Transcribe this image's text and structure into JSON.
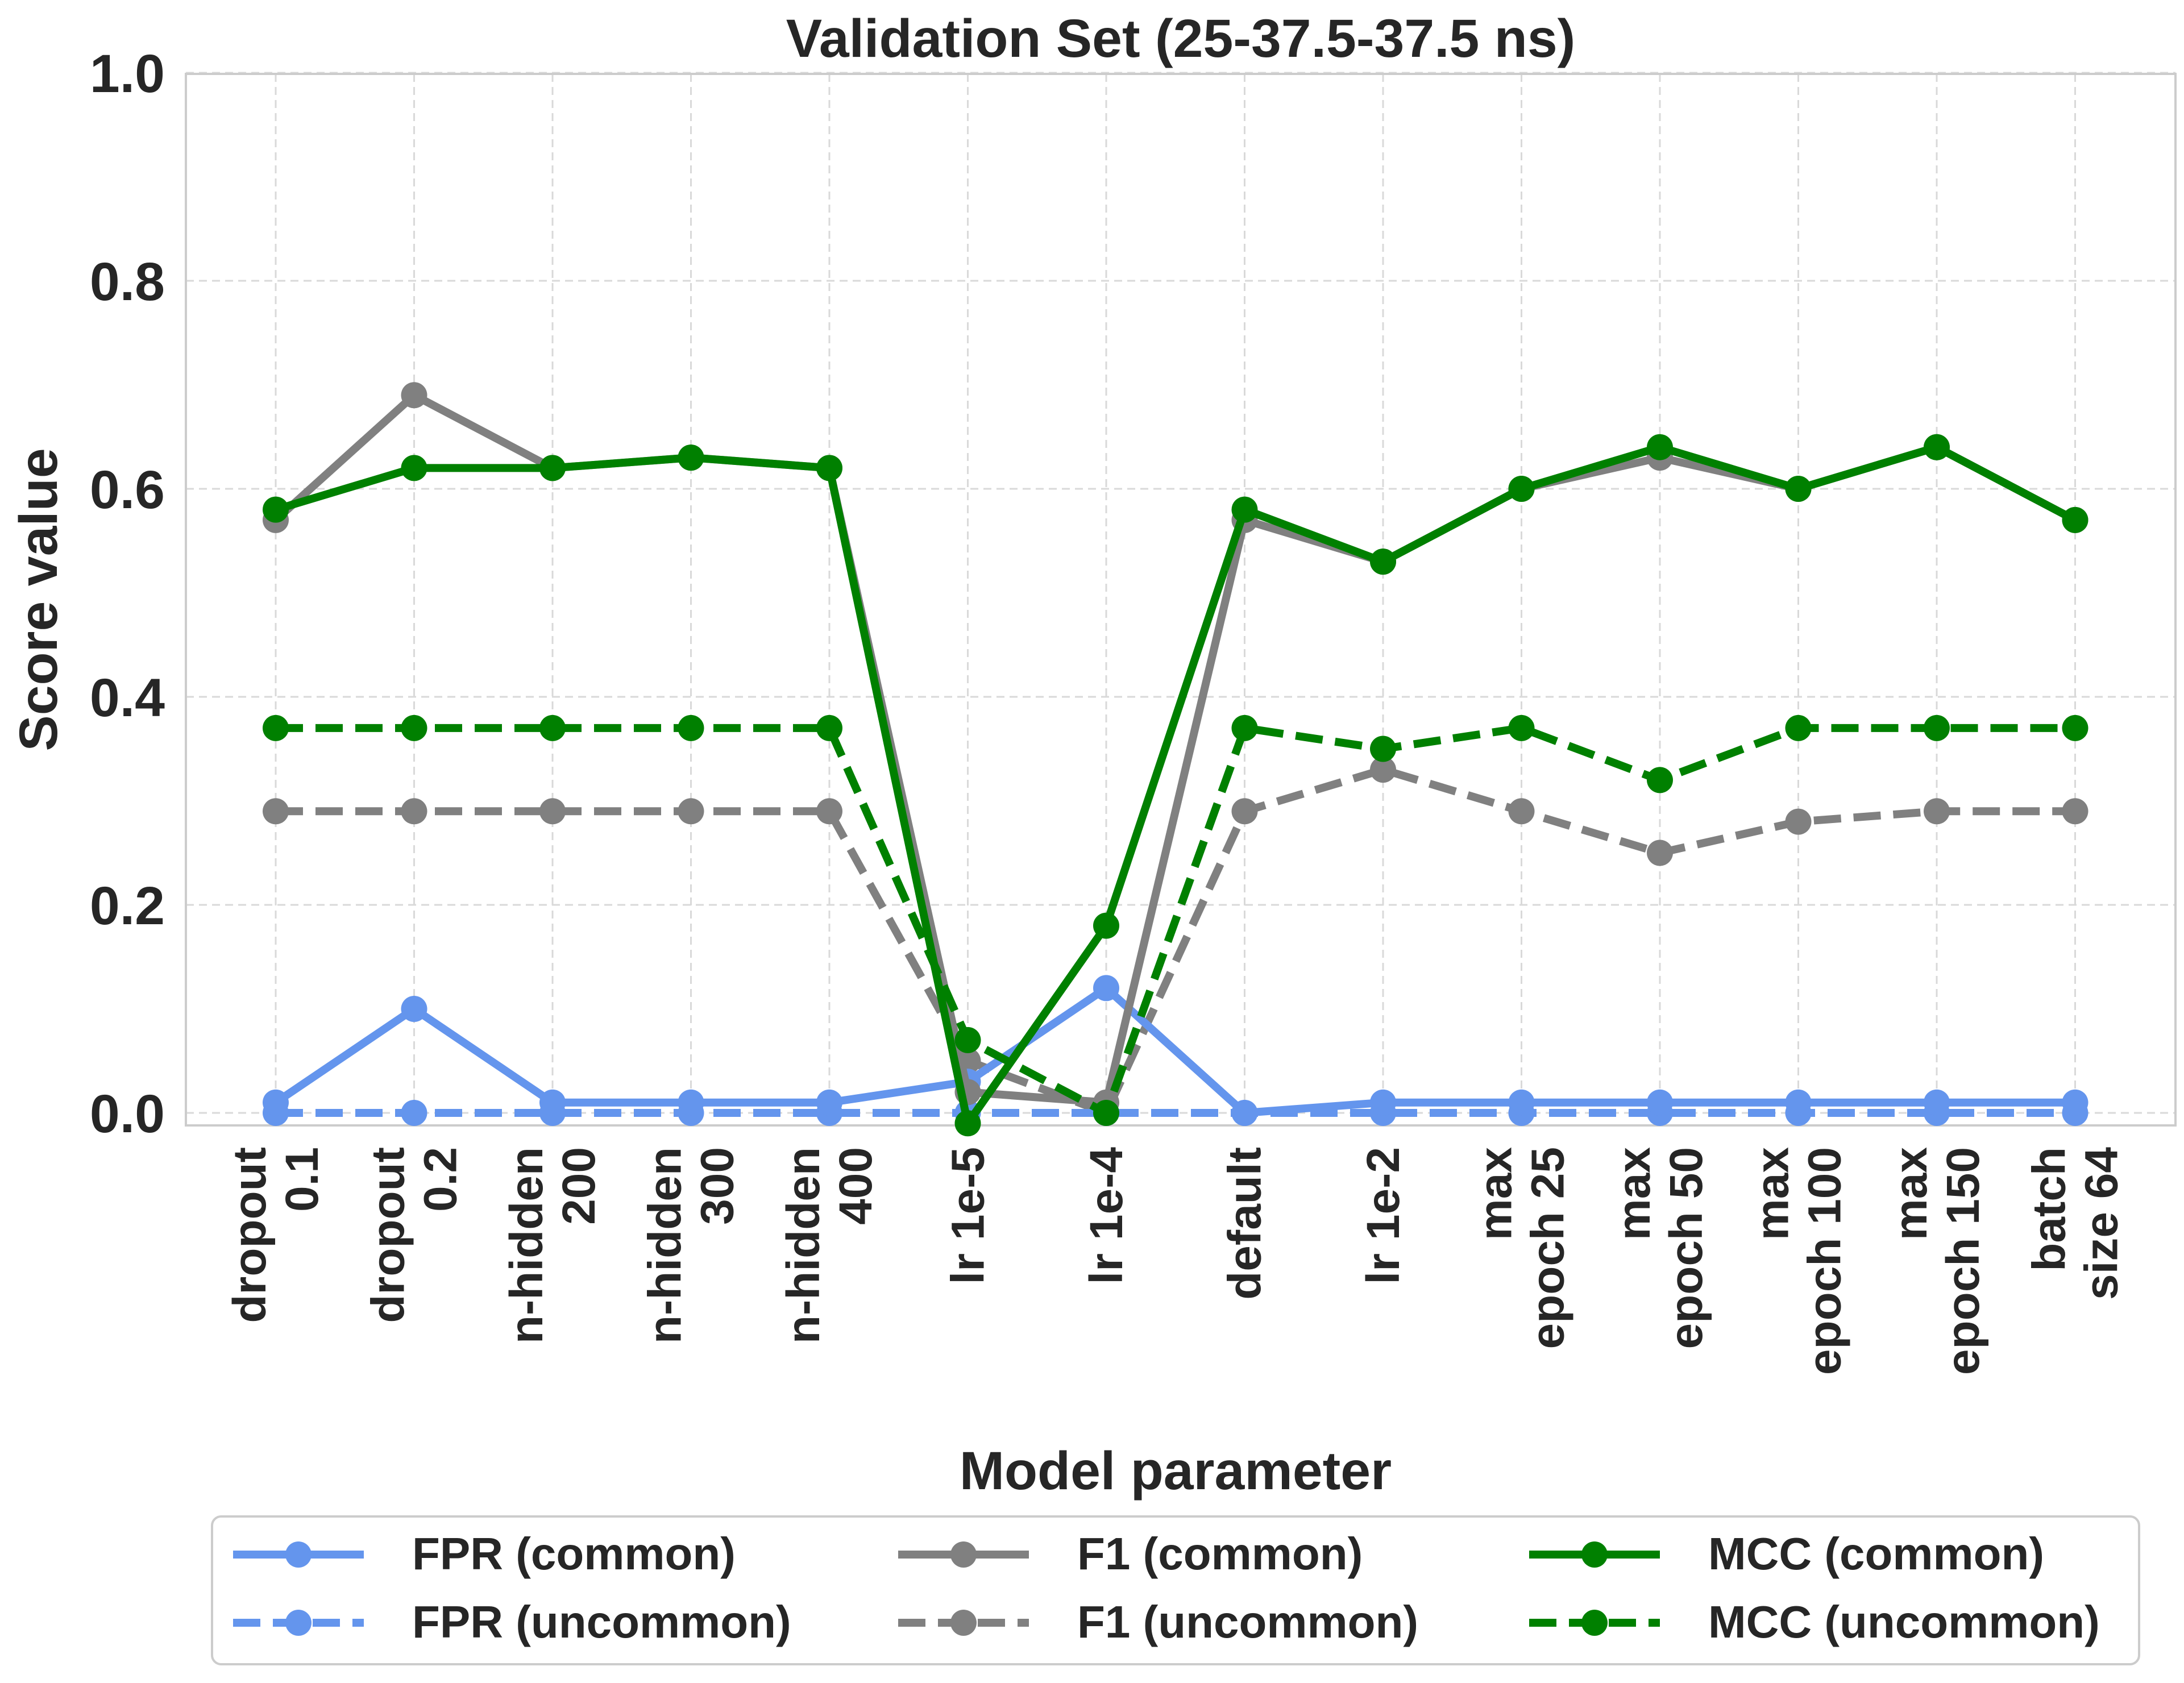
{
  "chart_data": {
    "type": "line",
    "title": "Validation Set (25-37.5-37.5 ns)",
    "xlabel": "Model parameter",
    "ylabel": "Score value",
    "ylim": [
      0,
      1.0
    ],
    "yticks": [
      "0.0",
      "0.2",
      "0.4",
      "0.6",
      "0.8",
      "1.0"
    ],
    "categories": [
      "dropout\n0.1",
      "dropout\n0.2",
      "n-hidden\n200",
      "n-hidden\n300",
      "n-hidden\n400",
      "lr 1e-5",
      "lr 1e-4",
      "default",
      "lr 1e-2",
      "max\nepoch 25",
      "max\nepoch 50",
      "max\nepoch 100",
      "max\nepoch 150",
      "batch\nsize 64"
    ],
    "grid": true,
    "legend_position": "bottom",
    "series": [
      {
        "name": "FPR (common)",
        "color": "#6495ED",
        "dash": "solid",
        "values": [
          0.01,
          0.1,
          0.01,
          0.01,
          0.01,
          0.03,
          0.12,
          0.0,
          0.01,
          0.01,
          0.01,
          0.01,
          0.01,
          0.01
        ]
      },
      {
        "name": "FPR (uncommon)",
        "color": "#6495ED",
        "dash": "dashed",
        "values": [
          0.0,
          0.0,
          0.0,
          0.0,
          0.0,
          0.0,
          0.0,
          0.0,
          0.0,
          0.0,
          0.0,
          0.0,
          0.0,
          0.0
        ]
      },
      {
        "name": "F1 (common)",
        "color": "#808080",
        "dash": "solid",
        "values": [
          0.57,
          0.69,
          0.62,
          0.63,
          0.62,
          0.02,
          0.01,
          0.57,
          0.53,
          0.6,
          0.63,
          0.6,
          0.64,
          0.57
        ]
      },
      {
        "name": "F1 (uncommon)",
        "color": "#808080",
        "dash": "dashed",
        "values": [
          0.29,
          0.29,
          0.29,
          0.29,
          0.29,
          0.05,
          0.0,
          0.29,
          0.33,
          0.29,
          0.25,
          0.28,
          0.29,
          0.29
        ]
      },
      {
        "name": "MCC (common)",
        "color": "#008000",
        "dash": "solid",
        "values": [
          0.58,
          0.62,
          0.62,
          0.63,
          0.62,
          -0.01,
          0.18,
          0.58,
          0.53,
          0.6,
          0.64,
          0.6,
          0.64,
          0.57
        ]
      },
      {
        "name": "MCC (uncommon)",
        "color": "#008000",
        "dash": "dashed",
        "values": [
          0.37,
          0.37,
          0.37,
          0.37,
          0.37,
          0.07,
          0.0,
          0.37,
          0.35,
          0.37,
          0.32,
          0.37,
          0.37,
          0.37
        ]
      }
    ]
  }
}
